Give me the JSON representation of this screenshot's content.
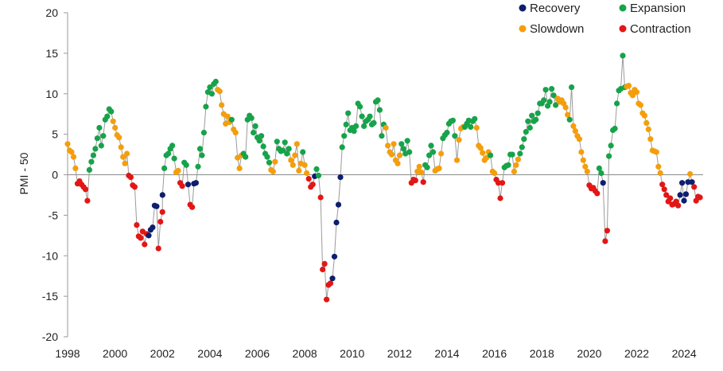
{
  "chart_data": {
    "type": "scatter",
    "ylabel": "PMI - 50",
    "xlim": [
      1998,
      2024.8
    ],
    "ylim": [
      -20,
      20
    ],
    "x_ticks": [
      1998,
      2000,
      2002,
      2004,
      2006,
      2008,
      2010,
      2012,
      2014,
      2016,
      2018,
      2020,
      2022,
      2024
    ],
    "x_tick_labels": [
      "1998",
      "2000",
      "2002",
      "2004",
      "2006",
      "2008",
      "2010",
      "2012",
      "2014",
      "2016",
      "2018",
      "2020",
      "2022",
      "2024"
    ],
    "y_ticks": [
      -20,
      -15,
      -10,
      -5,
      0,
      5,
      10,
      15,
      20
    ],
    "y_tick_labels": [
      "-20",
      "-15",
      "-10",
      "-5",
      "0",
      "5",
      "10",
      "15",
      "20"
    ],
    "grid": false,
    "zero_line": true,
    "legend_position": "top-right",
    "phases": [
      {
        "key": "Recovery",
        "label": "Recovery",
        "color": "#0d1f6e"
      },
      {
        "key": "Expansion",
        "label": "Expansion",
        "color": "#16a34a"
      },
      {
        "key": "Slowdown",
        "label": "Slowdown",
        "color": "#f59e0b"
      },
      {
        "key": "Contraction",
        "label": "Contraction",
        "color": "#e31616"
      }
    ],
    "line_color": "#9a9a9a",
    "segments": [
      {
        "phase": "Slowdown",
        "from": 1998.0,
        "points": [
          3.8,
          3.0,
          2.8,
          2.2,
          0.8
        ]
      },
      {
        "phase": "Contraction",
        "from": 1998.42,
        "points": [
          -1.1,
          -0.8,
          -1.2,
          -1.5,
          -1.8,
          -3.2
        ]
      },
      {
        "phase": "Expansion",
        "from": 1998.92,
        "points": [
          0.6,
          1.6,
          2.4,
          3.2,
          4.5,
          5.8,
          3.6,
          4.8,
          6.8,
          7.2,
          8.1,
          7.8
        ]
      },
      {
        "phase": "Slowdown",
        "from": 1999.92,
        "points": [
          6.6,
          5.8,
          4.9,
          4.6,
          3.4,
          2.2,
          1.4,
          2.6
        ]
      },
      {
        "phase": "Contraction",
        "from": 2000.58,
        "points": [
          -0.1,
          -0.3,
          -1.3,
          -1.5,
          -6.2,
          -7.6,
          -7.8,
          -7.0,
          -8.6,
          -7.3
        ]
      },
      {
        "phase": "Recovery",
        "from": 2001.42,
        "points": [
          -7.5,
          -6.8,
          -6.5,
          -3.8,
          -3.9
        ]
      },
      {
        "phase": "Contraction",
        "from": 2001.83,
        "points": [
          -9.1,
          -5.8,
          -4.6
        ]
      },
      {
        "phase": "Recovery",
        "from": 2002.0,
        "points": [
          -2.5
        ]
      },
      {
        "phase": "Expansion",
        "from": 2002.08,
        "points": [
          0.8,
          2.4,
          2.6,
          3.2,
          3.6,
          2.0
        ]
      },
      {
        "phase": "Slowdown",
        "from": 2002.58,
        "points": [
          0.3,
          0.5
        ]
      },
      {
        "phase": "Contraction",
        "from": 2002.75,
        "points": [
          -1.0,
          -1.4
        ]
      },
      {
        "phase": "Expansion",
        "from": 2002.92,
        "points": [
          1.5,
          1.2
        ]
      },
      {
        "phase": "Recovery",
        "from": 2003.08,
        "points": [
          -1.2
        ]
      },
      {
        "phase": "Contraction",
        "from": 2003.17,
        "points": [
          -3.7,
          -4.0
        ]
      },
      {
        "phase": "Recovery",
        "from": 2003.33,
        "points": [
          -1.1,
          -1.0
        ]
      },
      {
        "phase": "Expansion",
        "from": 2003.5,
        "points": [
          1.0,
          3.2,
          2.4,
          5.2,
          8.4,
          10.2,
          10.8,
          10.0,
          11.2,
          11.5
        ]
      },
      {
        "phase": "Slowdown",
        "from": 2004.33,
        "points": [
          10.5,
          10.3,
          8.6,
          7.5,
          6.3,
          7.2,
          6.5
        ]
      },
      {
        "phase": "Expansion",
        "from": 2004.92,
        "points": [
          6.8
        ]
      },
      {
        "phase": "Slowdown",
        "from": 2005.0,
        "points": [
          5.6,
          5.2,
          2.1,
          0.8,
          2.4
        ]
      },
      {
        "phase": "Expansion",
        "from": 2005.42,
        "points": [
          2.6,
          2.2,
          6.8,
          7.3,
          7.0,
          5.2,
          6.0,
          4.6,
          4.2,
          4.8,
          3.5,
          2.6,
          2.2,
          1.5
        ]
      },
      {
        "phase": "Slowdown",
        "from": 2006.58,
        "points": [
          0.6,
          0.4,
          1.6
        ]
      },
      {
        "phase": "Expansion",
        "from": 2006.83,
        "points": [
          4.1,
          3.2,
          2.9,
          3.0,
          4.0,
          2.6,
          3.2
        ]
      },
      {
        "phase": "Slowdown",
        "from": 2007.42,
        "points": [
          1.8,
          1.2,
          2.4,
          3.8,
          0.5,
          1.4
        ]
      },
      {
        "phase": "Expansion",
        "from": 2007.92,
        "points": [
          2.8
        ]
      },
      {
        "phase": "Slowdown",
        "from": 2008.0,
        "points": [
          1.2,
          0.2
        ]
      },
      {
        "phase": "Contraction",
        "from": 2008.17,
        "points": [
          -0.5,
          -1.5,
          -1.2
        ]
      },
      {
        "phase": "Recovery",
        "from": 2008.42,
        "points": [
          -0.2
        ]
      },
      {
        "phase": "Expansion",
        "from": 2008.5,
        "points": [
          0.7,
          -0.1
        ]
      },
      {
        "phase": "Contraction",
        "from": 2008.67,
        "points": [
          -2.8,
          -11.7,
          -11.0,
          -15.4,
          -13.6,
          -13.4
        ]
      },
      {
        "phase": "Recovery",
        "from": 2009.17,
        "points": [
          -12.8,
          -10.1,
          -5.9,
          -3.7,
          -0.3
        ]
      },
      {
        "phase": "Expansion",
        "from": 2009.58,
        "points": [
          3.4,
          4.8,
          6.2,
          7.6,
          5.5,
          5.8,
          5.4,
          6.0,
          8.8,
          8.4,
          7.2,
          6.0,
          6.6,
          6.8,
          7.2,
          6.2,
          6.4,
          9.0,
          9.2,
          8.0,
          4.8,
          6.2
        ]
      },
      {
        "phase": "Slowdown",
        "from": 2011.42,
        "points": [
          5.8,
          3.6,
          2.8,
          2.5,
          3.8,
          1.8,
          1.4,
          2.4
        ]
      },
      {
        "phase": "Expansion",
        "from": 2012.08,
        "points": [
          3.8,
          3.2,
          2.6,
          4.2,
          2.8
        ]
      },
      {
        "phase": "Contraction",
        "from": 2012.5,
        "points": [
          -1.0,
          -0.6,
          -0.7
        ]
      },
      {
        "phase": "Slowdown",
        "from": 2012.75,
        "points": [
          0.4,
          1.0,
          0.3
        ]
      },
      {
        "phase": "Contraction",
        "from": 2013.0,
        "points": [
          -0.9
        ]
      },
      {
        "phase": "Expansion",
        "from": 2013.08,
        "points": [
          1.2,
          0.9,
          2.4,
          3.6,
          2.8
        ]
      },
      {
        "phase": "Slowdown",
        "from": 2013.5,
        "points": [
          0.5,
          0.7,
          0.8,
          2.6
        ]
      },
      {
        "phase": "Expansion",
        "from": 2013.83,
        "points": [
          4.5,
          4.9,
          5.2,
          6.3,
          6.6,
          6.7,
          4.8
        ]
      },
      {
        "phase": "Slowdown",
        "from": 2014.42,
        "points": [
          1.8,
          4.3,
          5.7,
          5.9
        ]
      },
      {
        "phase": "Expansion",
        "from": 2014.75,
        "points": [
          5.9,
          6.3,
          6.7,
          5.9,
          6.6,
          6.9
        ]
      },
      {
        "phase": "Slowdown",
        "from": 2015.25,
        "points": [
          5.8,
          3.6,
          3.3,
          2.7,
          1.8,
          2.1,
          2.8
        ]
      },
      {
        "phase": "Expansion",
        "from": 2015.83,
        "points": [
          2.4
        ]
      },
      {
        "phase": "Slowdown",
        "from": 2015.92,
        "points": [
          0.4,
          0.2
        ]
      },
      {
        "phase": "Contraction",
        "from": 2016.08,
        "points": [
          -0.6,
          -1.0,
          -2.9,
          -1.0
        ]
      },
      {
        "phase": "Expansion",
        "from": 2016.42,
        "points": [
          0.9,
          1.1,
          1.2,
          2.5,
          2.5
        ]
      },
      {
        "phase": "Slowdown",
        "from": 2016.83,
        "points": [
          0.4,
          1.2,
          1.9
        ]
      },
      {
        "phase": "Expansion",
        "from": 2017.08,
        "points": [
          2.6,
          3.4,
          4.4,
          5.3,
          6.6,
          5.8,
          7.3,
          6.6,
          6.8,
          7.6,
          8.8,
          8.8,
          9.2,
          10.5,
          8.5,
          9.0,
          10.6,
          9.8,
          8.6
        ]
      },
      {
        "phase": "Slowdown",
        "from": 2018.67,
        "points": [
          9.4,
          9.0,
          9.2,
          8.8,
          8.3,
          7.4
        ]
      },
      {
        "phase": "Expansion",
        "from": 2019.17,
        "points": [
          6.8,
          10.8
        ]
      },
      {
        "phase": "Slowdown",
        "from": 2019.33,
        "points": [
          6.0,
          5.4,
          4.8,
          4.4,
          2.8,
          1.8,
          1.0,
          0.4
        ]
      },
      {
        "phase": "Contraction",
        "from": 2020.0,
        "points": [
          -1.3,
          -1.7,
          -1.6,
          -2.0,
          -2.3
        ]
      },
      {
        "phase": "Expansion",
        "from": 2020.42,
        "points": [
          0.8,
          0.2
        ]
      },
      {
        "phase": "Recovery",
        "from": 2020.58,
        "points": [
          -1.0
        ]
      },
      {
        "phase": "Contraction",
        "from": 2020.67,
        "points": [
          -8.2,
          -6.9
        ]
      },
      {
        "phase": "Expansion",
        "from": 2020.83,
        "points": [
          2.3,
          3.6,
          5.5,
          5.7,
          8.8,
          10.4,
          10.6,
          14.7,
          10.8
        ]
      },
      {
        "phase": "Slowdown",
        "from": 2021.58,
        "points": [
          10.9,
          11.0,
          10.1,
          9.8,
          10.5,
          10.2,
          8.8,
          8.6,
          7.6,
          7.3,
          6.4,
          5.6,
          4.4,
          3.0,
          2.9,
          2.8,
          1.0,
          0.2
        ]
      },
      {
        "phase": "Contraction",
        "from": 2023.08,
        "points": [
          -1.2,
          -1.8,
          -2.5,
          -3.3,
          -2.9,
          -3.7,
          -3.6,
          -3.3,
          -3.8
        ]
      },
      {
        "phase": "Recovery",
        "from": 2023.83,
        "points": [
          -2.5,
          -1.0,
          -3.2,
          -2.4,
          -0.9
        ]
      },
      {
        "phase": "Slowdown",
        "from": 2024.25,
        "points": [
          0.1
        ]
      },
      {
        "phase": "Recovery",
        "from": 2024.33,
        "points": [
          -0.9
        ]
      },
      {
        "phase": "Contraction",
        "from": 2024.42,
        "points": [
          -1.5,
          -3.2,
          -2.7,
          -2.8
        ]
      }
    ]
  }
}
